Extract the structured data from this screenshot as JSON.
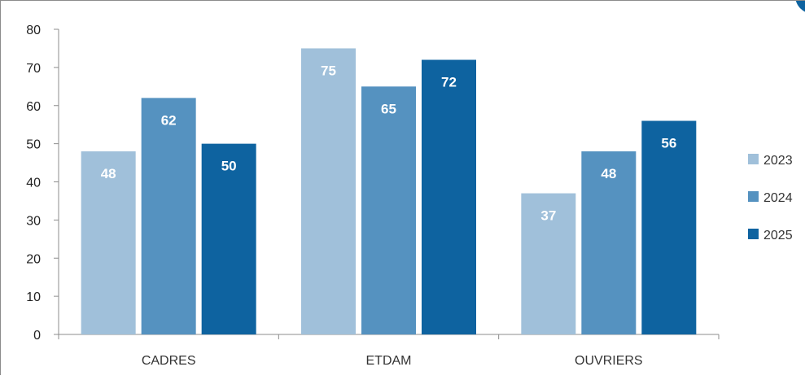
{
  "chart_data": {
    "type": "bar",
    "title": "",
    "xlabel": "",
    "ylabel": "",
    "categories": [
      "CADRES",
      "ETDAM",
      "OUVRIERS"
    ],
    "series": [
      {
        "name": "2023",
        "color": "#a0c0da",
        "values": [
          48,
          75,
          37
        ]
      },
      {
        "name": "2024",
        "color": "#5592c0",
        "values": [
          62,
          65,
          48
        ]
      },
      {
        "name": "2025",
        "color": "#0e63a0",
        "values": [
          50,
          72,
          56
        ]
      }
    ],
    "ylim": [
      0,
      80
    ],
    "yticks": [
      0,
      10,
      20,
      30,
      40,
      50,
      60,
      70,
      80
    ],
    "grid": false,
    "legend_position": "right",
    "data_labels": true
  }
}
